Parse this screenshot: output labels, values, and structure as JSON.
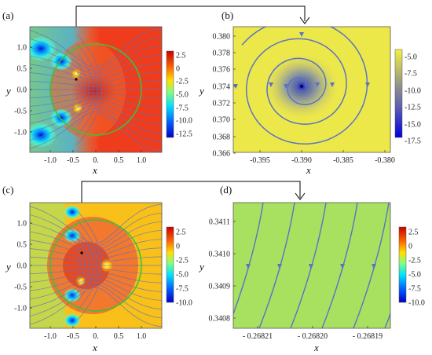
{
  "chart_data": [
    {
      "id": "a",
      "panel_label": "(a)",
      "type": "heatmap",
      "xlabel": "x",
      "ylabel": "y",
      "xlim": [
        -1.5,
        1.5
      ],
      "ylim": [
        -1.4,
        1.4
      ],
      "x_ticks": [
        "-1.0",
        "-0.5",
        "0.",
        "0.5",
        "1.0"
      ],
      "y_ticks": [
        "1.0",
        "0.5",
        "0.0",
        "-0.5",
        "-1.0"
      ],
      "colorbar_ticks": [
        "2.5",
        "0",
        "-2.5",
        "-5.0",
        "-7.5",
        "-10.0",
        "-12.5"
      ],
      "circle": {
        "center": [
          0,
          0
        ],
        "radius": 1.0,
        "color": "#3fbf3f"
      },
      "minima": [
        [
          -1.25,
          1.0
        ],
        [
          -1.25,
          -1.0
        ],
        [
          -0.75,
          0.72
        ],
        [
          -0.75,
          -0.72
        ]
      ],
      "maxima": [
        [
          -0.39,
          0.37
        ],
        [
          -0.3,
          -0.38
        ]
      ],
      "streamlines": "on"
    },
    {
      "id": "b",
      "panel_label": "(b)",
      "type": "heatmap",
      "xlabel": "x",
      "ylabel": "y",
      "xlim": [
        -0.398,
        -0.379
      ],
      "ylim": [
        -0.3655,
        0.3815
      ],
      "x_ticks": [
        "-0.395",
        "-0.390",
        "-0.385",
        "-0.380"
      ],
      "y_ticks": [
        "0.380",
        "0.378",
        "0.376",
        "0.374",
        "0.372",
        "0.370",
        "0.368",
        "0.366"
      ],
      "colorbar_ticks": [
        "-5.0",
        "-7.5",
        "-10.0",
        "-12.5",
        "-15.0",
        "-17.5"
      ],
      "spiral_center": [
        -0.39,
        0.374
      ],
      "streamlines": "spiral"
    },
    {
      "id": "c",
      "panel_label": "(c)",
      "type": "heatmap",
      "xlabel": "x",
      "ylabel": "y",
      "xlim": [
        -1.5,
        1.5
      ],
      "ylim": [
        -1.4,
        1.4
      ],
      "x_ticks": [
        "-1.0",
        "-0.5",
        "0.",
        "0.5",
        "1.0"
      ],
      "y_ticks": [
        "1.0",
        "0.5",
        "0.0",
        "-0.5",
        "-1.0"
      ],
      "colorbar_ticks": [
        "2.5",
        "0",
        "-2.5",
        "-5.0",
        "-7.5",
        "-10.0"
      ],
      "circle": {
        "center": [
          0,
          0
        ],
        "radius": 1.0,
        "color": "#3fbf3f"
      },
      "minima": [
        [
          -0.5,
          1.0
        ],
        [
          -0.5,
          0.65
        ],
        [
          -0.5,
          -0.65
        ],
        [
          -0.5,
          -1.0
        ]
      ],
      "maxima": [
        [
          -0.3,
          0.0
        ],
        [
          0.3,
          0.0
        ]
      ],
      "streamlines": "on"
    },
    {
      "id": "d",
      "panel_label": "(d)",
      "type": "heatmap",
      "xlabel": "x",
      "ylabel": "y",
      "xlim": [
        -0.268215,
        -0.268185
      ],
      "ylim": [
        0.34075,
        0.34115
      ],
      "x_ticks": [
        "- 0.26821",
        "- 0.26820",
        "- 0.26819"
      ],
      "y_ticks": [
        "0.3411",
        "0.3410",
        "0.3409",
        "0.3408"
      ],
      "colorbar_ticks": [
        "2.5",
        "0",
        "-2.5",
        "-5.0",
        "-7.5",
        "-10.0"
      ],
      "fill_color": "#a8e060",
      "streamlines": "curved-upward"
    }
  ],
  "colors": {
    "stream": "#5a72c8",
    "circle": "#3fbf3f",
    "uniform_b": "#ede84a",
    "uniform_d": "#a8e060"
  }
}
